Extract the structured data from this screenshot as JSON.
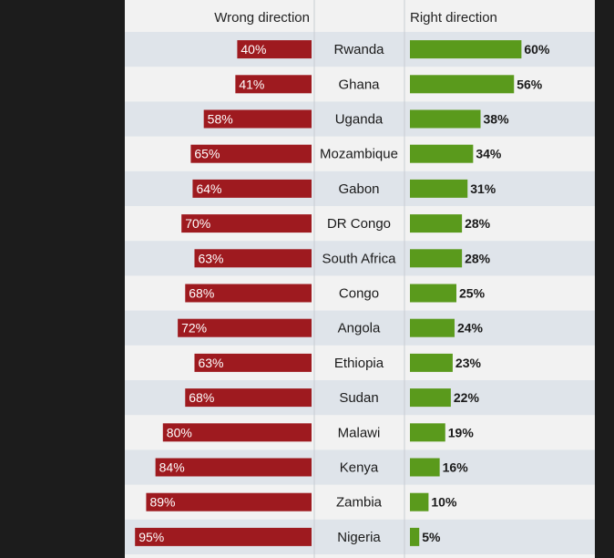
{
  "chart_data": {
    "type": "bar",
    "series": [
      {
        "name": "Wrong direction",
        "color": "#9e1a1f",
        "values": [
          40,
          41,
          58,
          65,
          64,
          70,
          63,
          68,
          72,
          63,
          68,
          80,
          84,
          89,
          95
        ]
      },
      {
        "name": "Right direction",
        "color": "#5a9a1c",
        "values": [
          60,
          56,
          38,
          34,
          31,
          28,
          28,
          25,
          24,
          23,
          22,
          19,
          16,
          10,
          5
        ]
      }
    ],
    "categories": [
      "Rwanda",
      "Ghana",
      "Uganda",
      "Mozambique",
      "Gabon",
      "DR Congo",
      "South Africa",
      "Congo",
      "Angola",
      "Ethiopia",
      "Sudan",
      "Malawi",
      "Kenya",
      "Zambia",
      "Nigeria"
    ],
    "wrong_labels": [
      "40%",
      "41%",
      "58%",
      "65%",
      "64%",
      "70%",
      "63%",
      "68%",
      "72%",
      "63%",
      "68%",
      "80%",
      "84%",
      "89%",
      "95%"
    ],
    "right_labels": [
      "60%",
      "56%",
      "38%",
      "34%",
      "31%",
      "28%",
      "28%",
      "25%",
      "24%",
      "23%",
      "22%",
      "19%",
      "16%",
      "10%",
      "5%"
    ],
    "row_stripe_color": "#dfe4ea",
    "value_max": 100
  }
}
